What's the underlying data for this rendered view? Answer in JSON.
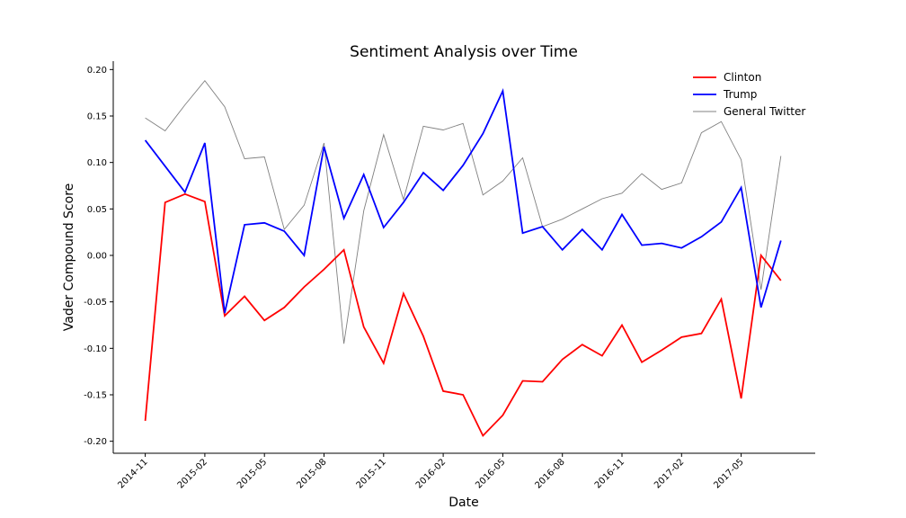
{
  "chart_data": {
    "type": "line",
    "title": "Sentiment Analysis over Time",
    "xlabel": "Date",
    "ylabel": "Vader Compound Score",
    "ylim": [
      -0.21,
      0.21
    ],
    "grid": false,
    "legend_position": "top-right",
    "x": [
      "2014-11",
      "2014-12",
      "2015-01",
      "2015-02",
      "2015-03",
      "2015-04",
      "2015-05",
      "2015-06",
      "2015-07",
      "2015-08",
      "2015-09",
      "2015-10",
      "2015-11",
      "2015-12",
      "2016-01",
      "2016-02",
      "2016-03",
      "2016-04",
      "2016-05",
      "2016-06",
      "2016-07",
      "2016-08",
      "2016-09",
      "2016-10",
      "2016-11",
      "2016-12",
      "2017-01",
      "2017-02",
      "2017-03",
      "2017-04",
      "2017-05",
      "2017-06",
      "2017-07"
    ],
    "x_ticks": [
      "2014-11",
      "2015-02",
      "2015-05",
      "2015-08",
      "2015-11",
      "2016-02",
      "2016-05",
      "2016-08",
      "2016-11",
      "2017-02",
      "2017-05"
    ],
    "y_ticks": [
      "0.20",
      "0.15",
      "0.10",
      "0.05",
      "0.00",
      "-0.05",
      "-0.10",
      "-0.15",
      "-0.20"
    ],
    "y_tick_values": [
      0.2,
      0.15,
      0.1,
      0.05,
      0.0,
      -0.05,
      -0.1,
      -0.15,
      -0.2
    ],
    "series": [
      {
        "name": "Clinton",
        "color": "#ff0000",
        "values": [
          -0.178,
          0.057,
          0.066,
          0.058,
          -0.065,
          -0.044,
          -0.07,
          -0.056,
          -0.034,
          -0.015,
          0.006,
          -0.077,
          -0.116,
          -0.041,
          -0.087,
          -0.146,
          -0.15,
          -0.194,
          -0.172,
          -0.135,
          -0.136,
          -0.112,
          -0.096,
          -0.108,
          -0.075,
          -0.115,
          -0.102,
          -0.088,
          -0.084,
          -0.047,
          -0.154,
          0.0,
          -0.027
        ]
      },
      {
        "name": "Trump",
        "color": "#0000ff",
        "values": [
          0.124,
          0.096,
          0.068,
          0.121,
          -0.062,
          0.033,
          0.035,
          0.026,
          0.0,
          0.117,
          0.04,
          0.087,
          0.03,
          0.057,
          0.089,
          0.07,
          0.097,
          0.131,
          0.177,
          0.024,
          0.031,
          0.006,
          0.028,
          0.006,
          0.044,
          0.011,
          0.013,
          0.008,
          0.02,
          0.036,
          0.073,
          -0.056,
          0.016
        ]
      },
      {
        "name": "General Twitter",
        "color": "#808080",
        "values": [
          0.148,
          0.134,
          0.162,
          0.188,
          0.16,
          0.104,
          0.106,
          0.028,
          0.054,
          0.121,
          -0.095,
          0.048,
          0.13,
          0.06,
          0.139,
          0.135,
          0.142,
          0.065,
          0.08,
          0.105,
          0.031,
          0.039,
          0.05,
          0.061,
          0.067,
          0.088,
          0.071,
          0.078,
          0.132,
          0.144,
          0.103,
          -0.037,
          0.107
        ]
      }
    ]
  }
}
